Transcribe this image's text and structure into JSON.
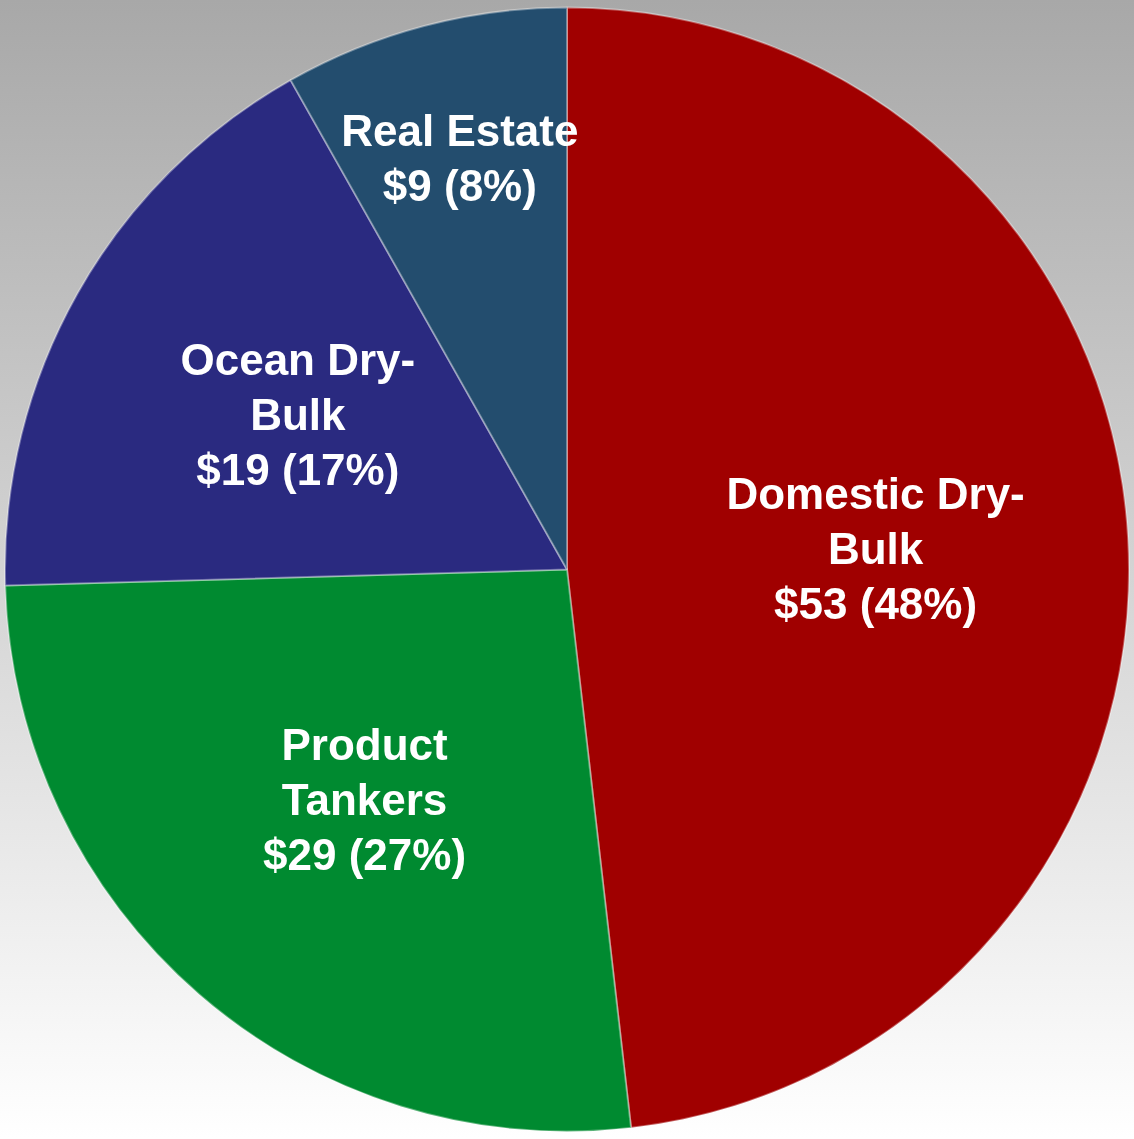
{
  "chart_data": {
    "type": "pie",
    "categories": [
      "Domestic Dry-Bulk",
      "Product Tankers",
      "Ocean Dry-Bulk",
      "Real Estate"
    ],
    "values": [
      53,
      29,
      19,
      9
    ],
    "colors": [
      "#a00000",
      "#008a30",
      "#2a2a80",
      "#234d6e"
    ],
    "value_labels": [
      "$53 (48%)",
      "$29 (27%)",
      "$19 (17%)",
      "$9 (8%)"
    ],
    "legend": false
  }
}
